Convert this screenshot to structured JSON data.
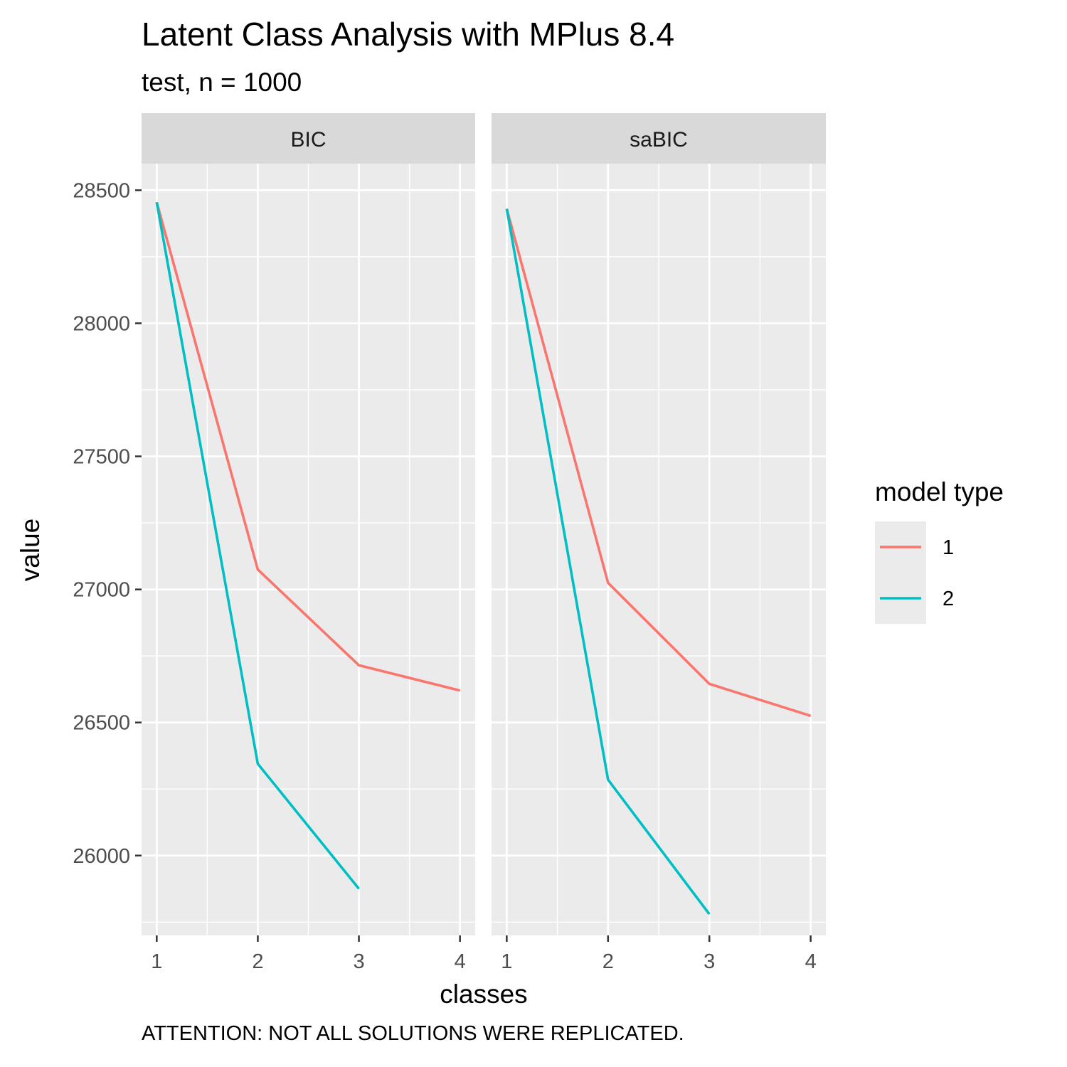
{
  "chart_data": {
    "type": "line",
    "title": "Latent Class Analysis with MPlus 8.4",
    "subtitle": "test, n = 1000",
    "caption": "ATTENTION: NOT ALL SOLUTIONS WERE REPLICATED.",
    "xlabel": "classes",
    "ylabel": "value",
    "x_ticks": [
      1,
      2,
      3,
      4
    ],
    "y_ticks": [
      26000,
      26500,
      27000,
      27500,
      28000,
      28500
    ],
    "xlim": [
      0.85,
      4.15
    ],
    "ylim": [
      25700,
      28600
    ],
    "grid": true,
    "legend": {
      "title": "model type",
      "position": "right",
      "entries": [
        {
          "label": "1",
          "color": "#F8766D"
        },
        {
          "label": "2",
          "color": "#00BFC4"
        }
      ]
    },
    "panels": [
      {
        "name": "BIC",
        "series": [
          {
            "name": "1",
            "color": "#F8766D",
            "x": [
              1,
              2,
              3,
              4
            ],
            "y": [
              28455,
              27075,
              26715,
              26620
            ]
          },
          {
            "name": "2",
            "color": "#00BFC4",
            "x": [
              1,
              2,
              3
            ],
            "y": [
              28455,
              26345,
              25875
            ]
          }
        ]
      },
      {
        "name": "saBIC",
        "series": [
          {
            "name": "1",
            "color": "#F8766D",
            "x": [
              1,
              2,
              3,
              4
            ],
            "y": [
              28430,
              27025,
              26645,
              26525
            ]
          },
          {
            "name": "2",
            "color": "#00BFC4",
            "x": [
              1,
              2,
              3
            ],
            "y": [
              28430,
              26285,
              25780
            ]
          }
        ]
      }
    ]
  }
}
